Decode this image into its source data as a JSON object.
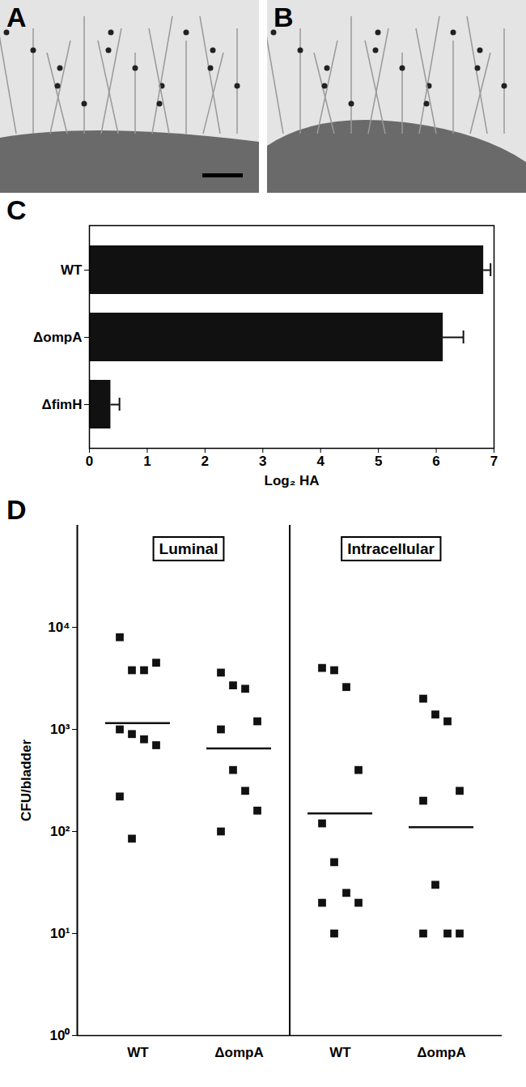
{
  "images": [
    {
      "label": "A"
    },
    {
      "label": "B"
    }
  ],
  "chart_data": [
    {
      "type": "bar",
      "title": "C",
      "orientation": "horizontal",
      "categories": [
        "WT",
        "ΔompA",
        "ΔfimH"
      ],
      "values": [
        6.82,
        6.12,
        0.37
      ],
      "errors": [
        0.12,
        0.35,
        0.15
      ],
      "color": "#111111",
      "xlabel": "Log₂ HA",
      "xlim": [
        0,
        7
      ],
      "xticks": [
        0,
        1,
        2,
        3,
        4,
        5,
        6,
        7
      ]
    },
    {
      "type": "scatter",
      "title": "D",
      "log": "y",
      "marker": "square",
      "color": "#111111",
      "ylabel": "CFU/bladder",
      "categories": [
        "WT",
        "ΔompA",
        "WT",
        "ΔompA"
      ],
      "groups": [
        "Luminal",
        "Luminal",
        "Intracellular",
        "Intracellular"
      ],
      "values": [
        [
          8000,
          3800,
          3800,
          4500,
          1000,
          900,
          800,
          700,
          220,
          85
        ],
        [
          3600,
          2700,
          2500,
          1200,
          1000,
          400,
          250,
          160,
          100
        ],
        [
          4000,
          3800,
          2600,
          400,
          120,
          50,
          25,
          20,
          20,
          10
        ],
        [
          2000,
          1400,
          1200,
          250,
          200,
          30,
          10,
          10,
          10
        ]
      ],
      "means": [
        1150,
        650,
        150,
        110
      ],
      "ylim": [
        1,
        100000
      ],
      "yticks": [
        {
          "value": 1,
          "label": "10⁰"
        },
        {
          "value": 10,
          "label": "10¹"
        },
        {
          "value": 100,
          "label": "10²"
        },
        {
          "value": 1000,
          "label": "10³"
        },
        {
          "value": 10000,
          "label": "10⁴"
        }
      ]
    }
  ]
}
